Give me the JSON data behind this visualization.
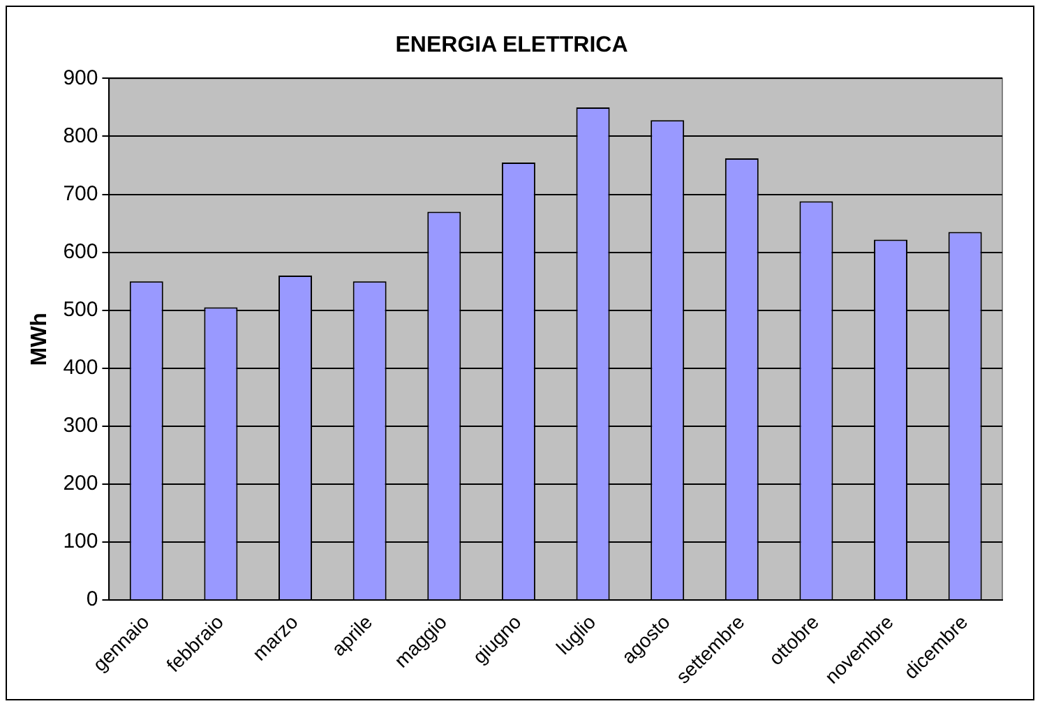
{
  "chart_data": {
    "type": "bar",
    "title": "ENERGIA ELETTRICA",
    "ylabel": "MWh",
    "categories": [
      "gennaio",
      "febbraio",
      "marzo",
      "aprile",
      "maggio",
      "giugno",
      "luglio",
      "agosto",
      "settembre",
      "ottobre",
      "novembre",
      "dicembre"
    ],
    "values": [
      550,
      505,
      560,
      550,
      670,
      755,
      850,
      828,
      762,
      688,
      622,
      635
    ],
    "color": "#9999ff",
    "ylim": [
      0,
      900
    ],
    "yticks": [
      0,
      100,
      200,
      300,
      400,
      500,
      600,
      700,
      800,
      900
    ],
    "grid": "y",
    "legend": false
  }
}
